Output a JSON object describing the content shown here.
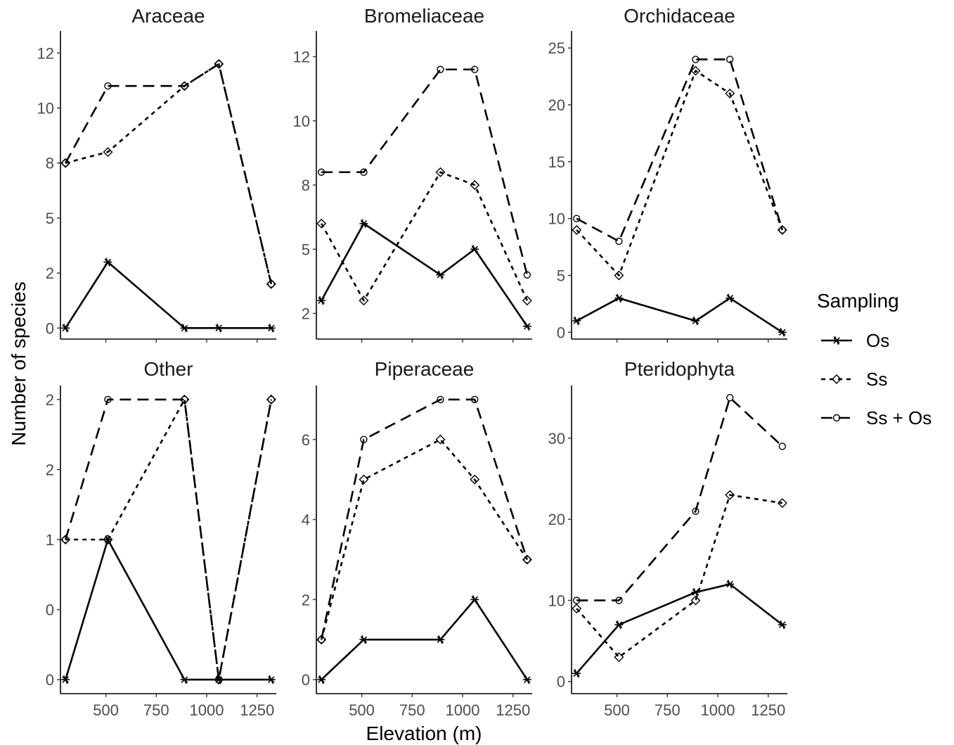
{
  "chart_data": {
    "type": "line",
    "xlabel": "Elevation (m)",
    "ylabel": "Number of species",
    "x": [
      300,
      510,
      890,
      1060,
      1320
    ],
    "xticks": [
      500,
      750,
      1000,
      1250
    ],
    "xlim": [
      275,
      1345
    ],
    "legend": {
      "title": "Sampling",
      "position": "right",
      "entries": [
        "Os",
        "Ss",
        "Ss + Os"
      ]
    },
    "series_styles": {
      "Os": {
        "dash": "none",
        "marker": "asterisk"
      },
      "Ss": {
        "dash": "dotted",
        "marker": "diamond"
      },
      "Ss + Os": {
        "dash": "dashed",
        "marker": "circle"
      }
    },
    "panels": [
      {
        "title": "Araceae",
        "yticks": [
          "0",
          "2",
          "5",
          "8",
          "10",
          "12"
        ],
        "yticks_pos": [
          0,
          2.5,
          5,
          7.5,
          10,
          12.5
        ],
        "ylim": [
          -0.5,
          13.5
        ],
        "series": [
          {
            "name": "Os",
            "values": [
              0,
              3,
              0,
              0,
              0
            ]
          },
          {
            "name": "Ss",
            "values": [
              7.5,
              8,
              11,
              12,
              2
            ]
          },
          {
            "name": "Ss + Os",
            "values": [
              7.5,
              11,
              11,
              12,
              2
            ]
          }
        ]
      },
      {
        "title": "Bromeliaceae",
        "yticks": [
          "2",
          "5",
          "8",
          "10",
          "12"
        ],
        "yticks_pos": [
          2.5,
          5,
          7.5,
          10,
          12.5
        ],
        "ylim": [
          1.5,
          13.5
        ],
        "series": [
          {
            "name": "Os",
            "values": [
              3,
              6,
              4,
              5,
              2
            ]
          },
          {
            "name": "Ss",
            "values": [
              6,
              3,
              8,
              7.5,
              3
            ]
          },
          {
            "name": "Ss + Os",
            "values": [
              8,
              8,
              12,
              12,
              4
            ]
          }
        ]
      },
      {
        "title": "Orchidaceae",
        "yticks": [
          "0",
          "5",
          "10",
          "15",
          "20",
          "25"
        ],
        "yticks_pos": [
          0,
          5,
          10,
          15,
          20,
          25
        ],
        "ylim": [
          -0.6,
          26.5
        ],
        "series": [
          {
            "name": "Os",
            "values": [
              1,
              3,
              1,
              3,
              0
            ]
          },
          {
            "name": "Ss",
            "values": [
              9,
              5,
              23,
              21,
              9
            ]
          },
          {
            "name": "Ss + Os",
            "values": [
              10,
              8,
              24,
              24,
              9
            ]
          }
        ]
      },
      {
        "title": "Other",
        "yticks": [
          "0",
          "0",
          "1",
          "2",
          "2"
        ],
        "yticks_pos": [
          0,
          0.5,
          1,
          1.5,
          2
        ],
        "ylim": [
          -0.1,
          2.1
        ],
        "series": [
          {
            "name": "Os",
            "values": [
              0,
              1,
              0,
              0,
              0
            ]
          },
          {
            "name": "Ss",
            "values": [
              1,
              1,
              2,
              0,
              2
            ]
          },
          {
            "name": "Ss + Os",
            "values": [
              1,
              2,
              2,
              0,
              2
            ]
          }
        ]
      },
      {
        "title": "Piperaceae",
        "yticks": [
          "0",
          "2",
          "4",
          "6"
        ],
        "yticks_pos": [
          0,
          2,
          4,
          6
        ],
        "ylim": [
          -0.35,
          7.35
        ],
        "series": [
          {
            "name": "Os",
            "values": [
              0,
              1,
              1,
              2,
              0
            ]
          },
          {
            "name": "Ss",
            "values": [
              1,
              5,
              6,
              5,
              3
            ]
          },
          {
            "name": "Ss + Os",
            "values": [
              1,
              6,
              7,
              7,
              3
            ]
          }
        ]
      },
      {
        "title": "Pteridophyta",
        "yticks": [
          "0",
          "10",
          "20",
          "30"
        ],
        "yticks_pos": [
          0,
          10,
          20,
          30
        ],
        "ylim": [
          -1.5,
          36.5
        ],
        "series": [
          {
            "name": "Os",
            "values": [
              1,
              7,
              11,
              12,
              7
            ]
          },
          {
            "name": "Ss",
            "values": [
              9,
              3,
              10,
              23,
              22
            ]
          },
          {
            "name": "Ss + Os",
            "values": [
              10,
              10,
              21,
              35,
              29
            ]
          }
        ]
      }
    ]
  }
}
